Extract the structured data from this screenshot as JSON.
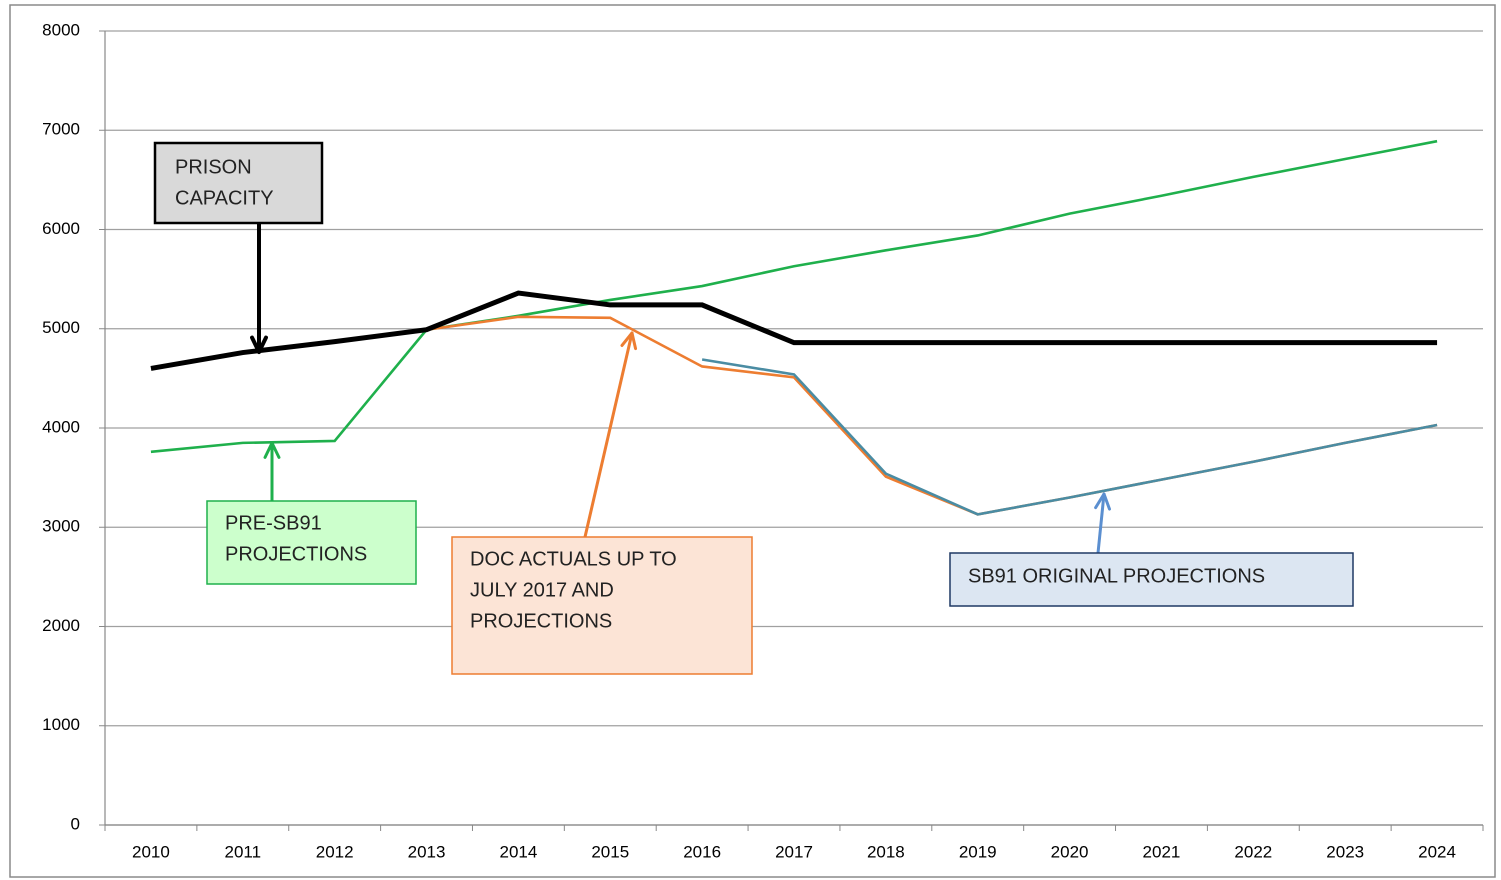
{
  "chart_data": {
    "type": "line",
    "categories": [
      "2010",
      "2011",
      "2012",
      "2013",
      "2014",
      "2015",
      "2016",
      "2017",
      "2018",
      "2019",
      "2020",
      "2021",
      "2022",
      "2023",
      "2024"
    ],
    "series": [
      {
        "name": "PRE-SB91 PROJECTIONS",
        "color": "#1fb04c",
        "values": [
          3760,
          3850,
          3870,
          4990,
          5130,
          5290,
          5430,
          5630,
          5790,
          5940,
          6160,
          6340,
          6530,
          6710,
          6890
        ]
      },
      {
        "name": "DOC ACTUALS UP TO JULY 2017 AND PROJECTIONS",
        "color": "#ed7d31",
        "values": [
          null,
          null,
          null,
          4990,
          5120,
          5110,
          4620,
          4510,
          3510,
          3130,
          3300,
          3480,
          3660,
          3850,
          4030
        ]
      },
      {
        "name": "SB91 ORIGINAL PROJECTIONS",
        "color": "#4a8ca3",
        "values": [
          null,
          null,
          null,
          null,
          null,
          null,
          4690,
          4540,
          3540,
          3130,
          3300,
          3480,
          3660,
          3850,
          4030
        ]
      },
      {
        "name": "PRISON CAPACITY",
        "color": "#000000",
        "values": [
          4600,
          4760,
          4870,
          4990,
          5360,
          5240,
          5240,
          4860,
          4860,
          4860,
          4860,
          4860,
          4860,
          4860,
          4860
        ]
      }
    ],
    "annotations": [
      {
        "lines": [
          "PRISON",
          "CAPACITY"
        ]
      },
      {
        "lines": [
          "PRE-SB91",
          "PROJECTIONS"
        ]
      },
      {
        "lines": [
          "DOC ACTUALS UP TO",
          "JULY 2017 AND",
          "PROJECTIONS"
        ]
      },
      {
        "lines": [
          "SB91 ORIGINAL PROJECTIONS"
        ]
      }
    ],
    "ylim": [
      0,
      8000
    ],
    "yticks": [
      0,
      1000,
      2000,
      3000,
      4000,
      5000,
      6000,
      7000,
      8000
    ],
    "grid": true
  }
}
